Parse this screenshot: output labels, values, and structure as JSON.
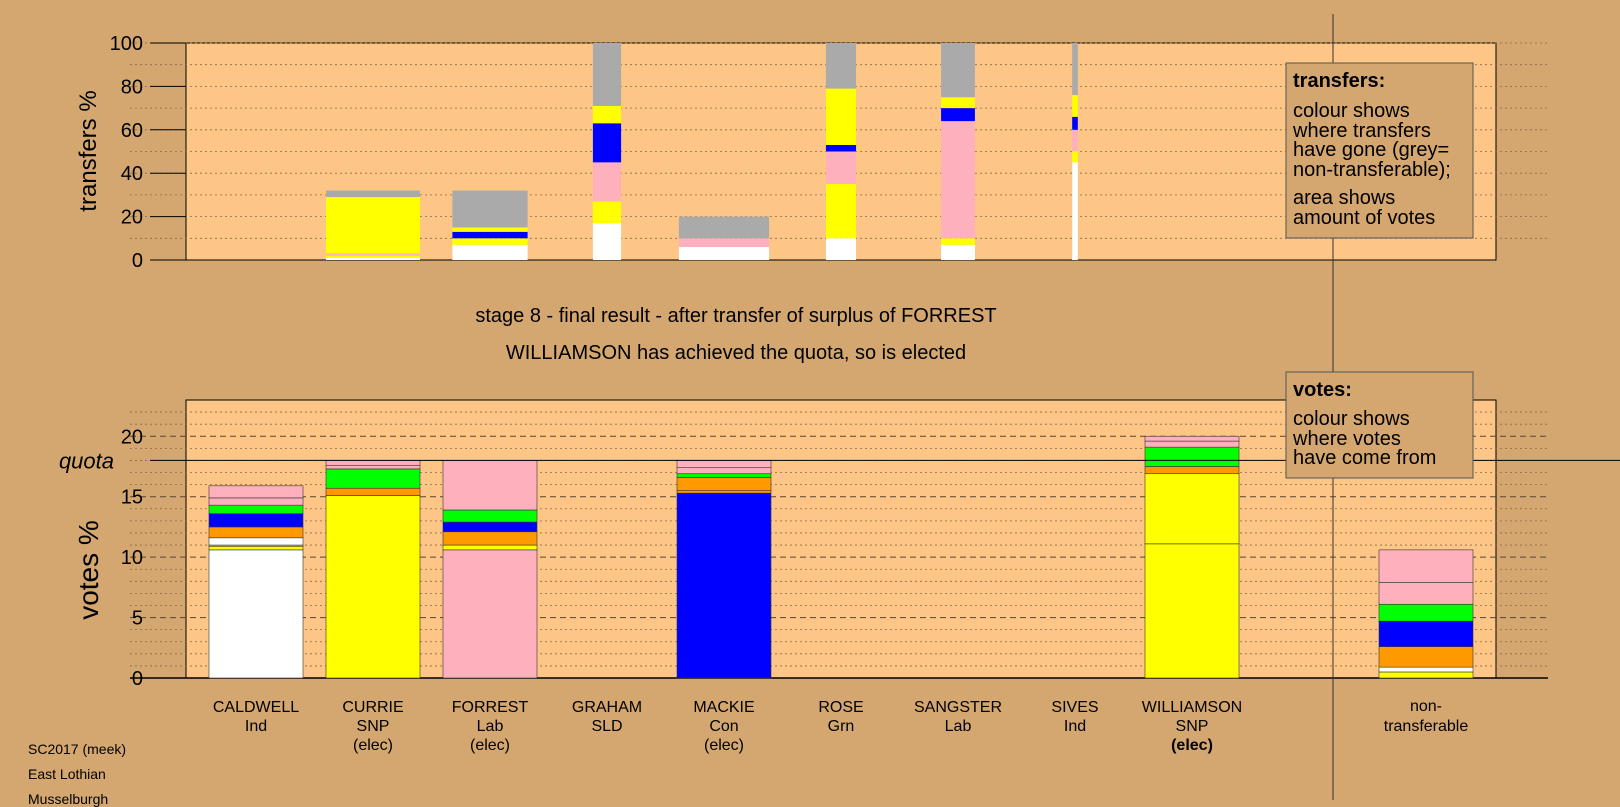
{
  "colors": {
    "background": "#D4A771",
    "plot_bg": "#FDC686",
    "CALDWELL": "#FFFFFF",
    "CURRIE": "#FFFF00",
    "FORREST": "#FFB0BD",
    "GRAHAM": "#FF9900",
    "MACKIE": "#0000FF",
    "ROSE": "#00FF00",
    "SANGSTER": "#FFB0BD",
    "SIVES": "#FFFFFF",
    "WILLIAMSON": "#FFFF00",
    "nontransferable": "#AAAAAA"
  },
  "chart_data": [
    {
      "type": "bar",
      "stacked": true,
      "title": "",
      "ylabel": "transfers %",
      "ylim": [
        0,
        100
      ],
      "yticks": [
        0,
        20,
        40,
        60,
        80,
        100
      ],
      "grid": true,
      "candidates": [
        "CALDWELL",
        "CURRIE",
        "FORREST",
        "GRAHAM",
        "MACKIE",
        "ROSE",
        "SANGSTER",
        "SIVES",
        "WILLIAMSON"
      ],
      "bars": [
        {
          "candidate": "CURRIE",
          "width": 1.0,
          "segments": [
            {
              "from": "CALDWELL",
              "value": 1
            },
            {
              "from": "CURRIE",
              "value": 1
            },
            {
              "from": "FORREST",
              "value": 1
            },
            {
              "from": "WILLIAMSON",
              "value": 26
            },
            {
              "from": "nontransferable",
              "value": 3
            }
          ]
        },
        {
          "candidate": "FORREST",
          "width": 0.8,
          "segments": [
            {
              "from": "CALDWELL",
              "value": 7
            },
            {
              "from": "WILLIAMSON",
              "value": 3
            },
            {
              "from": "MACKIE",
              "value": 3
            },
            {
              "from": "WILLIAMSON",
              "value": 2
            },
            {
              "from": "nontransferable",
              "value": 17
            }
          ]
        },
        {
          "candidate": "GRAHAM",
          "width": 0.3,
          "segments": [
            {
              "from": "CALDWELL",
              "value": 17
            },
            {
              "from": "WILLIAMSON",
              "value": 10
            },
            {
              "from": "FORREST",
              "value": 18
            },
            {
              "from": "MACKIE",
              "value": 18
            },
            {
              "from": "WILLIAMSON",
              "value": 8
            },
            {
              "from": "nontransferable",
              "value": 29
            }
          ]
        },
        {
          "candidate": "MACKIE",
          "width": 0.96,
          "segments": [
            {
              "from": "CALDWELL",
              "value": 6
            },
            {
              "from": "FORREST",
              "value": 4
            },
            {
              "from": "nontransferable",
              "value": 10
            }
          ]
        },
        {
          "candidate": "ROSE",
          "width": 0.32,
          "segments": [
            {
              "from": "CALDWELL",
              "value": 10
            },
            {
              "from": "WILLIAMSON",
              "value": 25
            },
            {
              "from": "FORREST",
              "value": 15
            },
            {
              "from": "MACKIE",
              "value": 3
            },
            {
              "from": "WILLIAMSON",
              "value": 26
            },
            {
              "from": "nontransferable",
              "value": 21
            }
          ]
        },
        {
          "candidate": "SANGSTER",
          "width": 0.36,
          "segments": [
            {
              "from": "CALDWELL",
              "value": 7
            },
            {
              "from": "WILLIAMSON",
              "value": 3
            },
            {
              "from": "FORREST",
              "value": 54
            },
            {
              "from": "MACKIE",
              "value": 6
            },
            {
              "from": "WILLIAMSON",
              "value": 5
            },
            {
              "from": "nontransferable",
              "value": 25
            }
          ]
        },
        {
          "candidate": "SIVES",
          "width": 0.06,
          "segments": [
            {
              "from": "CALDWELL",
              "value": 45
            },
            {
              "from": "WILLIAMSON",
              "value": 5
            },
            {
              "from": "FORREST",
              "value": 10
            },
            {
              "from": "MACKIE",
              "value": 6
            },
            {
              "from": "WILLIAMSON",
              "value": 10
            },
            {
              "from": "nontransferable",
              "value": 24
            }
          ]
        }
      ],
      "legend": {
        "position": "top-right",
        "title": "transfers:",
        "lines": [
          "colour shows",
          "where transfers",
          "have gone (grey=",
          "non-transferable);",
          "area shows",
          "amount of votes"
        ]
      }
    },
    {
      "type": "bar",
      "stacked": true,
      "title": "",
      "ylabel": "votes %",
      "ylim": [
        0,
        23
      ],
      "yticks": [
        0,
        5,
        10,
        15,
        20
      ],
      "quota": 18,
      "quota_label": "quota",
      "grid": true,
      "bars": [
        {
          "candidate": "CALDWELL",
          "segments": [
            {
              "from": "CALDWELL",
              "value": 10.6
            },
            {
              "from": "CURRIE",
              "value": 0.3
            },
            {
              "from": "FORREST",
              "value": 0.1
            },
            {
              "from": "SIVES",
              "value": 0.6
            },
            {
              "from": "GRAHAM",
              "value": 0.9
            },
            {
              "from": "MACKIE",
              "value": 1.1
            },
            {
              "from": "ROSE",
              "value": 0.7
            },
            {
              "from": "SANGSTER",
              "value": 0.6
            },
            {
              "from": "FORREST",
              "value": 1
            }
          ]
        },
        {
          "candidate": "CURRIE",
          "segments": [
            {
              "from": "CURRIE",
              "value": 15.1
            },
            {
              "from": "GRAHAM",
              "value": 0.6
            },
            {
              "from": "ROSE",
              "value": 1.6
            },
            {
              "from": "SANGSTER",
              "value": 0.3
            },
            {
              "from": "FORREST",
              "value": 0.4
            }
          ]
        },
        {
          "candidate": "FORREST",
          "segments": [
            {
              "from": "FORREST",
              "value": 10.6
            },
            {
              "from": "CURRIE",
              "value": 0.4
            },
            {
              "from": "GRAHAM",
              "value": 1.1
            },
            {
              "from": "MACKIE",
              "value": 0.8
            },
            {
              "from": "ROSE",
              "value": 1
            },
            {
              "from": "SANGSTER",
              "value": 4.1
            }
          ]
        },
        {
          "candidate": "MACKIE",
          "segments": [
            {
              "from": "MACKIE",
              "value": 15.3
            },
            {
              "from": "GRAHAM",
              "value": 0.2
            },
            {
              "from": "GRAHAM",
              "value": 1.1
            },
            {
              "from": "ROSE",
              "value": 0.3
            },
            {
              "from": "FORREST",
              "value": 0.5
            },
            {
              "from": "SANGSTER",
              "value": 0.6
            }
          ]
        },
        {
          "candidate": "WILLIAMSON",
          "segments": [
            {
              "from": "WILLIAMSON",
              "value": 11.1
            },
            {
              "from": "CURRIE",
              "value": 5.8
            },
            {
              "from": "GRAHAM",
              "value": 0.6
            },
            {
              "from": "ROSE",
              "value": 1.6
            },
            {
              "from": "FORREST",
              "value": 0.5
            },
            {
              "from": "SANGSTER",
              "value": 0.4
            }
          ]
        },
        {
          "candidate": "nontransferable",
          "segments": [
            {
              "from": "CURRIE",
              "value": 0.5
            },
            {
              "from": "CALDWELL",
              "value": 0.4
            },
            {
              "from": "GRAHAM",
              "value": 1.7
            },
            {
              "from": "MACKIE",
              "value": 2.1
            },
            {
              "from": "ROSE",
              "value": 1.4
            },
            {
              "from": "FORREST",
              "value": 1.8
            },
            {
              "from": "SANGSTER",
              "value": 2.7
            }
          ]
        }
      ],
      "legend": {
        "position": "top-right",
        "title": "votes:",
        "lines": [
          "colour shows",
          "where votes",
          "have come from"
        ]
      }
    }
  ],
  "stage_text": {
    "line1": "stage 8 - final result - after transfer of surplus of FORREST",
    "line2": "WILLIAMSON has achieved the quota, so is elected"
  },
  "candidate_labels": [
    {
      "key": "CALDWELL",
      "name": "CALDWELL",
      "party": "Ind",
      "status": ""
    },
    {
      "key": "CURRIE",
      "name": "CURRIE",
      "party": "SNP",
      "status": "(elec)"
    },
    {
      "key": "FORREST",
      "name": "FORREST",
      "party": "Lab",
      "status": "(elec)"
    },
    {
      "key": "GRAHAM",
      "name": "GRAHAM",
      "party": "SLD",
      "status": ""
    },
    {
      "key": "MACKIE",
      "name": "MACKIE",
      "party": "Con",
      "status": "(elec)"
    },
    {
      "key": "ROSE",
      "name": "ROSE",
      "party": "Grn",
      "status": ""
    },
    {
      "key": "SANGSTER",
      "name": "SANGSTER",
      "party": "Lab",
      "status": ""
    },
    {
      "key": "SIVES",
      "name": "SIVES",
      "party": "Ind",
      "status": ""
    },
    {
      "key": "WILLIAMSON",
      "name": "WILLIAMSON",
      "party": "SNP",
      "status": "(elec)"
    }
  ],
  "nontransferable_label": {
    "line1": "non-",
    "line2": "transferable"
  },
  "footer": {
    "line1": "SC2017 (meek)",
    "line2": "East Lothian",
    "line3": "Musselburgh"
  }
}
